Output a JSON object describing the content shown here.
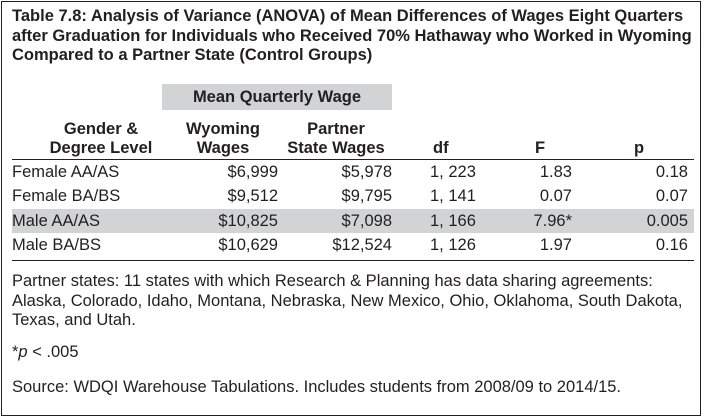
{
  "title": {
    "label": "Table 7.8:",
    "text": "Analysis of Variance (ANOVA) of Mean Differences of Wages Eight Quarters after Graduation for Individuals who Received 70% Hathaway who Worked in Wyoming Compared to a Partner State (Control Groups)"
  },
  "group_header": "Mean Quarterly Wage",
  "columns": {
    "group_line1": "Gender &",
    "group_line2": "Degree Level",
    "wy_line1": "Wyoming",
    "wy_line2": "Wages",
    "ps_line1": "Partner",
    "ps_line2": "State Wages",
    "df": "df",
    "f": "F",
    "p": "p"
  },
  "rows": [
    {
      "group": "Female AA/AS",
      "wyoming": "$6,999",
      "partner": "$5,978",
      "df": "1, 223",
      "f": "1.83",
      "p": "0.18"
    },
    {
      "group": "Female BA/BS",
      "wyoming": "$9,512",
      "partner": "$9,795",
      "df": "1, 141",
      "f": "0.07",
      "p": "0.07"
    },
    {
      "group": "Male AA/AS",
      "wyoming": "$10,825",
      "partner": "$7,098",
      "df": "1, 166",
      "f": "7.96*",
      "p": "0.005"
    },
    {
      "group": "Male BA/BS",
      "wyoming": "$10,629",
      "partner": "$12,524",
      "df": "1, 126",
      "f": "1.97",
      "p": "0.16"
    }
  ],
  "notes": {
    "partner_states": "Partner states: 11 states with which Research & Planning has data sharing agreements: Alaska, Colorado, Idaho, Montana, Nebraska, New Mexico, Ohio, Oklahoma, South Dakota, Texas, and Utah.",
    "significance_mark": "*",
    "significance_var": "p",
    "significance_rest": " < .005",
    "source": "Source: WDQI Warehouse Tabulations. Includes students from 2008/09 to 2014/15."
  },
  "colors": {
    "text": "#231f20",
    "shade": "#d1d3d4",
    "border": "#231f20"
  }
}
